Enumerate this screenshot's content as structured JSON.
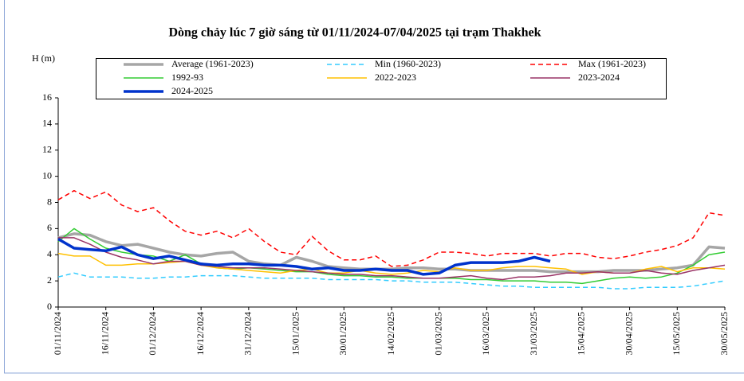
{
  "chart_data": {
    "type": "line",
    "title": "Dòng chảy lúc 7 giờ sáng từ 01/11/2024-07/04/2025 tại trạm Thakhek",
    "y_label": "H (m)",
    "x": [
      "01/11/2024",
      "06/11/2024",
      "11/11/2024",
      "16/11/2024",
      "21/11/2024",
      "26/11/2024",
      "01/12/2024",
      "06/12/2024",
      "11/12/2024",
      "16/12/2024",
      "21/12/2024",
      "26/12/2024",
      "31/12/2024",
      "05/01/2025",
      "10/01/2025",
      "15/01/2025",
      "20/01/2025",
      "25/01/2025",
      "30/01/2025",
      "04/02/2025",
      "09/02/2025",
      "14/02/2025",
      "19/02/2025",
      "24/02/2025",
      "01/03/2025",
      "06/03/2025",
      "11/03/2025",
      "16/03/2025",
      "21/03/2025",
      "26/03/2025",
      "31/03/2025",
      "05/04/2025",
      "10/04/2025",
      "15/04/2025",
      "20/04/2025",
      "25/04/2025",
      "30/04/2025",
      "05/05/2025",
      "10/05/2025",
      "15/05/2025",
      "20/05/2025",
      "25/05/2025",
      "30/05/2025"
    ],
    "xlim": [
      "01/11/2024",
      "30/05/2025"
    ],
    "xticks": [
      "01/11/2024",
      "16/11/2024",
      "01/12/2024",
      "16/12/2024",
      "31/12/2024",
      "15/01/2025",
      "30/01/2025",
      "14/02/2025",
      "01/03/2025",
      "16/03/2025",
      "31/03/2025",
      "15/04/2025",
      "30/04/2025",
      "15/05/2025",
      "30/05/2025"
    ],
    "ylim": [
      0,
      16
    ],
    "yticks": [
      0,
      2,
      4,
      6,
      8,
      10,
      12,
      14,
      16
    ],
    "series": [
      {
        "name": "Average (1961-2023)",
        "color": "#a6a6a6",
        "thick": true,
        "dash": false,
        "values": [
          5.3,
          5.6,
          5.5,
          5.0,
          4.7,
          4.8,
          4.5,
          4.2,
          4.0,
          3.9,
          4.1,
          4.2,
          3.5,
          3.3,
          3.2,
          3.8,
          3.5,
          3.1,
          3.0,
          2.9,
          2.9,
          2.9,
          3.0,
          3.0,
          2.9,
          2.9,
          2.8,
          2.8,
          2.8,
          2.8,
          2.8,
          2.7,
          2.7,
          2.7,
          2.7,
          2.8,
          2.8,
          2.8,
          2.9,
          3.0,
          3.2,
          4.6,
          4.5
        ]
      },
      {
        "name": "Min (1960-2023)",
        "color": "#33ccff",
        "thick": false,
        "dash": true,
        "values": [
          2.3,
          2.6,
          2.3,
          2.3,
          2.3,
          2.2,
          2.2,
          2.3,
          2.3,
          2.4,
          2.4,
          2.4,
          2.3,
          2.2,
          2.2,
          2.2,
          2.2,
          2.1,
          2.1,
          2.1,
          2.1,
          2.0,
          2.0,
          1.9,
          1.9,
          1.9,
          1.8,
          1.7,
          1.6,
          1.6,
          1.5,
          1.5,
          1.5,
          1.5,
          1.5,
          1.4,
          1.4,
          1.5,
          1.5,
          1.5,
          1.6,
          1.8,
          2.0
        ]
      },
      {
        "name": "Max (1961-2023)",
        "color": "#ff0000",
        "thick": false,
        "dash": true,
        "values": [
          8.2,
          8.9,
          8.3,
          8.8,
          7.8,
          7.3,
          7.6,
          6.6,
          5.8,
          5.5,
          5.8,
          5.3,
          6.0,
          5.0,
          4.2,
          4.0,
          5.4,
          4.3,
          3.6,
          3.6,
          3.9,
          3.1,
          3.2,
          3.6,
          4.2,
          4.2,
          4.1,
          3.9,
          4.1,
          4.1,
          4.1,
          3.9,
          4.1,
          4.1,
          3.8,
          3.7,
          3.9,
          4.2,
          4.4,
          4.7,
          5.3,
          7.2,
          7.0
        ]
      },
      {
        "name": "1992-93",
        "color": "#33cc33",
        "thick": false,
        "dash": false,
        "values": [
          5.0,
          6.0,
          5.2,
          4.5,
          4.2,
          4.0,
          3.9,
          3.5,
          4.0,
          3.3,
          3.0,
          2.9,
          3.0,
          2.9,
          2.8,
          2.7,
          2.7,
          2.5,
          2.4,
          2.4,
          2.3,
          2.3,
          2.2,
          2.2,
          2.2,
          2.2,
          2.1,
          2.1,
          2.0,
          2.0,
          2.0,
          1.9,
          1.9,
          1.8,
          2.0,
          2.2,
          2.3,
          2.2,
          2.3,
          2.6,
          3.2,
          4.0,
          4.2
        ]
      },
      {
        "name": "2022-2023",
        "color": "#ffc000",
        "thick": false,
        "dash": false,
        "values": [
          4.1,
          3.9,
          3.9,
          3.2,
          3.2,
          3.3,
          3.3,
          3.4,
          3.5,
          3.2,
          3.0,
          2.9,
          2.8,
          2.7,
          2.6,
          2.8,
          2.9,
          2.6,
          2.6,
          2.8,
          2.6,
          2.5,
          2.6,
          2.8,
          2.7,
          3.0,
          2.8,
          2.8,
          3.0,
          3.1,
          3.1,
          3.0,
          2.9,
          2.5,
          2.7,
          2.6,
          2.6,
          2.9,
          3.1,
          2.7,
          3.0,
          3.0,
          2.9
        ]
      },
      {
        "name": "2023-2024",
        "color": "#993366",
        "thick": false,
        "dash": false,
        "values": [
          5.3,
          5.3,
          4.8,
          4.2,
          3.8,
          3.6,
          3.3,
          3.5,
          3.5,
          3.2,
          3.1,
          3.0,
          3.0,
          3.0,
          2.9,
          2.8,
          2.7,
          2.6,
          2.5,
          2.5,
          2.4,
          2.4,
          2.3,
          2.2,
          2.2,
          2.3,
          2.4,
          2.2,
          2.1,
          2.3,
          2.3,
          2.4,
          2.6,
          2.6,
          2.7,
          2.6,
          2.6,
          2.8,
          2.6,
          2.5,
          2.8,
          3.0,
          3.2
        ]
      },
      {
        "name": "2024-2025",
        "color": "#0033cc",
        "thick": true,
        "dash": false,
        "values": [
          5.2,
          4.5,
          4.4,
          4.3,
          4.6,
          4.0,
          3.7,
          3.9,
          3.6,
          3.3,
          3.2,
          3.3,
          3.3,
          3.2,
          3.2,
          3.1,
          2.9,
          3.0,
          2.8,
          2.8,
          2.9,
          2.8,
          2.8,
          2.5,
          2.6,
          3.2,
          3.4,
          3.4,
          3.4,
          3.5,
          3.8,
          3.5,
          null,
          null,
          null,
          null,
          null,
          null,
          null,
          null,
          null,
          null,
          null
        ]
      }
    ]
  }
}
